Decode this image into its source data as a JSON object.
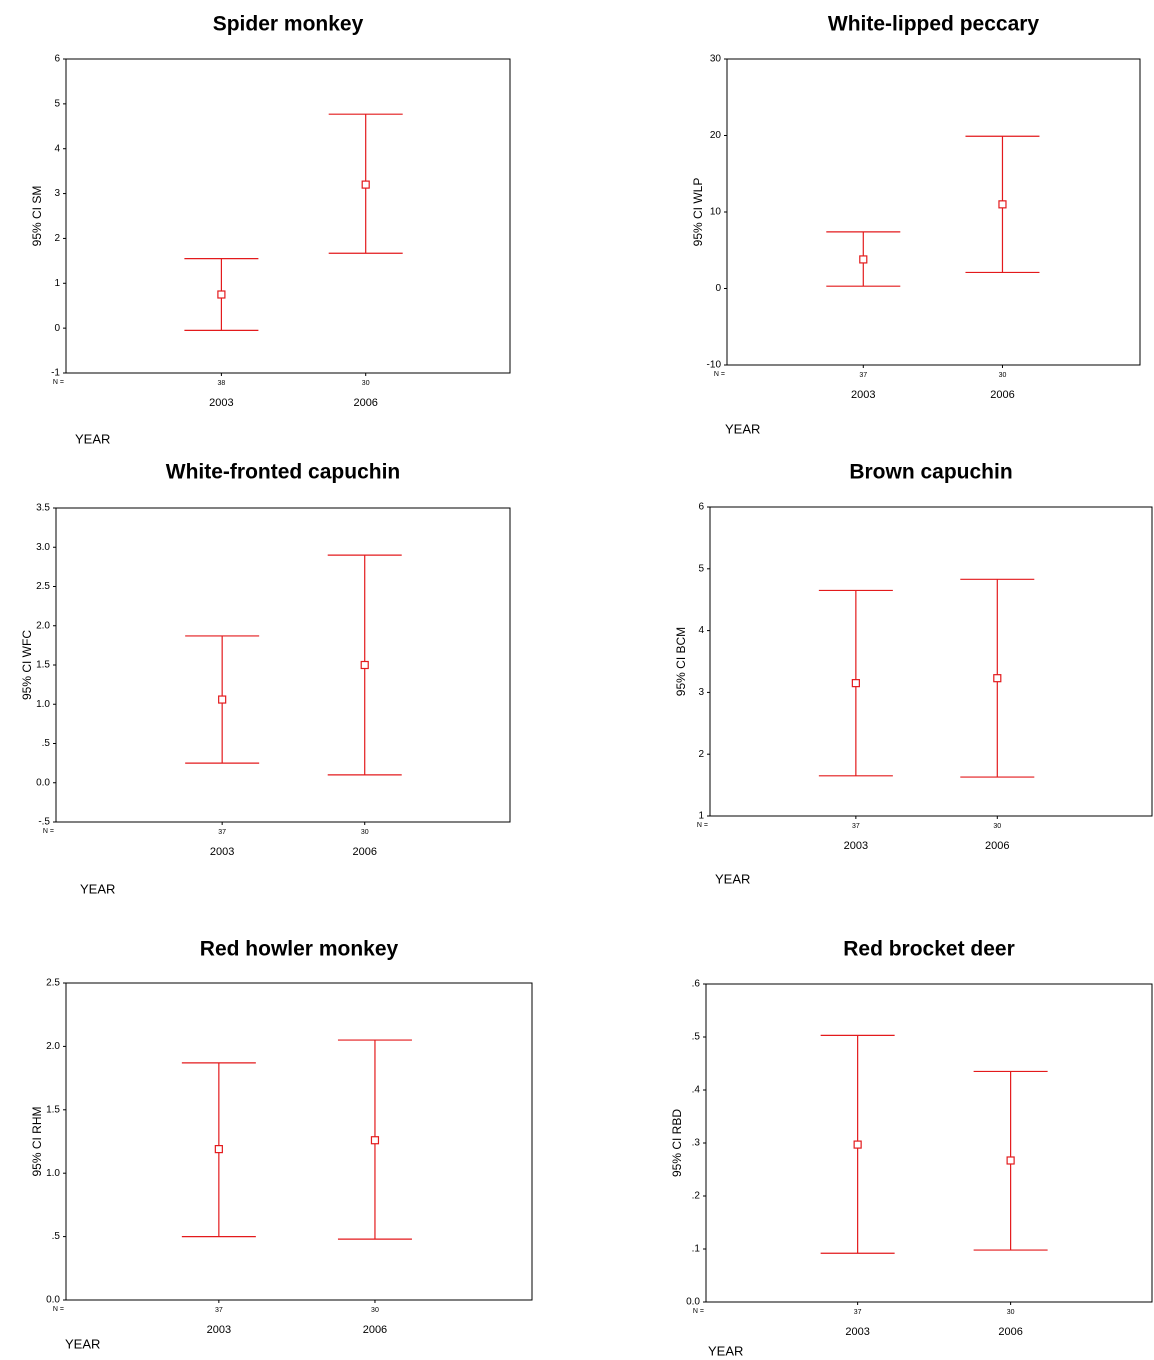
{
  "chart_data": [
    {
      "type": "errorbar",
      "title": "Spider monkey",
      "y_label": "95% CI SM",
      "x_label": "YEAR",
      "n_label": "N =",
      "n": [
        38,
        30
      ],
      "categories": [
        "2003",
        "2006"
      ],
      "values": [
        0.75,
        3.2
      ],
      "lower": [
        -0.05,
        1.67
      ],
      "upper": [
        1.55,
        4.77
      ],
      "color": "#e31a1c",
      "ylim": [
        -1,
        6
      ],
      "yticks": [
        -1,
        0,
        1,
        2,
        3,
        4,
        5,
        6
      ],
      "grid": false
    },
    {
      "type": "errorbar",
      "title": "White-lipped peccary",
      "y_label": "95% CI WLP",
      "x_label": "YEAR",
      "n_label": "N =",
      "n": [
        37,
        30
      ],
      "categories": [
        "2003",
        "2006"
      ],
      "values": [
        3.8,
        11
      ],
      "lower": [
        0.3,
        2.1
      ],
      "upper": [
        7.4,
        19.9
      ],
      "color": "#e31a1c",
      "ylim": [
        -10,
        30
      ],
      "yticks": [
        -10,
        0,
        10,
        20,
        30
      ],
      "grid": false
    },
    {
      "type": "errorbar",
      "title": "White-fronted capuchin",
      "y_label": "95% CI WFC",
      "x_label": "YEAR",
      "n_label": "N =",
      "n": [
        37,
        30
      ],
      "categories": [
        "2003",
        "2006"
      ],
      "values": [
        1.06,
        1.5
      ],
      "lower": [
        0.25,
        0.1
      ],
      "upper": [
        1.87,
        2.9
      ],
      "color": "#e31a1c",
      "ylim": [
        -0.5,
        3.5
      ],
      "yticks": [
        {
          "value": -0.5,
          "label": "-.5"
        },
        {
          "value": 0,
          "label": "0.0"
        },
        {
          "value": 0.5,
          "label": ".5"
        },
        {
          "value": 1,
          "label": "1.0"
        },
        1.5,
        {
          "value": 2,
          "label": "2.0"
        },
        2.5,
        {
          "value": 3,
          "label": "3.0"
        },
        3.5
      ],
      "grid": false
    },
    {
      "type": "errorbar",
      "title": "Brown capuchin",
      "y_label": "95% CI BCM",
      "x_label": "YEAR",
      "n_label": "N =",
      "n": [
        37,
        30
      ],
      "categories": [
        "2003",
        "2006"
      ],
      "values": [
        3.15,
        3.23
      ],
      "lower": [
        1.65,
        1.63
      ],
      "upper": [
        4.65,
        4.83
      ],
      "color": "#e31a1c",
      "ylim": [
        1,
        6
      ],
      "yticks": [
        1,
        2,
        3,
        4,
        5,
        6
      ],
      "grid": false
    },
    {
      "type": "errorbar",
      "title": "Red howler monkey",
      "y_label": "95% CI RHM",
      "x_label": "YEAR",
      "n_label": "N =",
      "n": [
        37,
        30
      ],
      "categories": [
        "2003",
        "2006"
      ],
      "values": [
        1.19,
        1.26
      ],
      "lower": [
        0.5,
        0.48
      ],
      "upper": [
        1.87,
        2.05
      ],
      "color": "#e31a1c",
      "ylim": [
        0,
        2.5
      ],
      "yticks": [
        {
          "value": 0,
          "label": "0.0"
        },
        {
          "value": 0.5,
          "label": ".5"
        },
        {
          "value": 1,
          "label": "1.0"
        },
        1.5,
        {
          "value": 2,
          "label": "2.0"
        },
        2.5
      ],
      "grid": false
    },
    {
      "type": "errorbar",
      "title": "Red brocket deer",
      "y_label": "95% CI RBD",
      "x_label": "YEAR",
      "n_label": "N =",
      "n": [
        37,
        30
      ],
      "categories": [
        "2003",
        "2006"
      ],
      "values": [
        0.297,
        0.267
      ],
      "lower": [
        0.092,
        0.098
      ],
      "upper": [
        0.503,
        0.435
      ],
      "color": "#e31a1c",
      "ylim": [
        0,
        0.6
      ],
      "yticks": [
        {
          "value": 0,
          "label": "0.0"
        },
        {
          "value": 0.1,
          "label": ".1"
        },
        {
          "value": 0.2,
          "label": ".2"
        },
        {
          "value": 0.3,
          "label": ".3"
        },
        {
          "value": 0.4,
          "label": ".4"
        },
        {
          "value": 0.5,
          "label": ".5"
        },
        {
          "value": 0.6,
          "label": ".6"
        }
      ],
      "grid": false
    }
  ]
}
